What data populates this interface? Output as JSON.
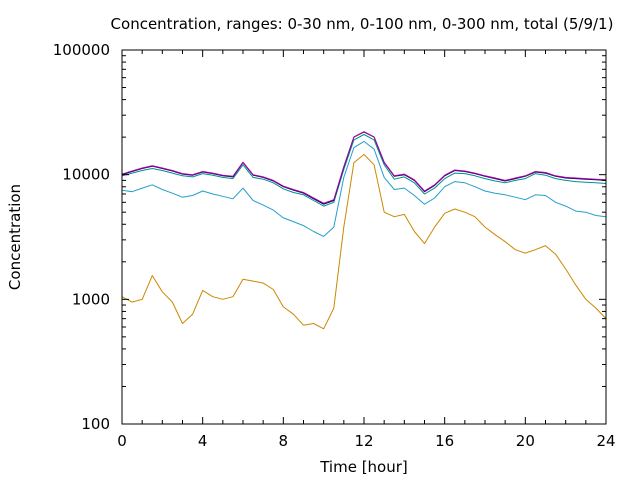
{
  "chart_data": {
    "type": "line",
    "title": "Concentration, ranges: 0-30 nm, 0-100 nm, 0-300 nm, total (5/9/1)",
    "xlabel": "Time [hour]",
    "ylabel": "Concentration",
    "xlim": [
      0,
      24
    ],
    "ylim": [
      100,
      100000
    ],
    "yscale": "log",
    "grid": false,
    "legend": "none",
    "x_ticks": [
      "0",
      "4",
      "8",
      "12",
      "16",
      "20",
      "24"
    ],
    "y_ticks": [
      "100",
      "1000",
      "10000",
      "100000"
    ],
    "x": [
      0,
      0.5,
      1,
      1.5,
      2,
      2.5,
      3,
      3.5,
      4,
      4.5,
      5,
      5.5,
      6,
      6.5,
      7,
      7.5,
      8,
      8.5,
      9,
      9.5,
      10,
      10.5,
      11,
      11.5,
      12,
      12.5,
      13,
      13.5,
      14,
      14.5,
      15,
      15.5,
      16,
      16.5,
      17,
      17.5,
      18,
      18.5,
      19,
      19.5,
      20,
      20.5,
      21,
      21.5,
      22,
      22.5,
      23,
      23.5,
      24
    ],
    "series": [
      {
        "color": "#cc8800",
        "values": [
          1050,
          950,
          1000,
          1550,
          1150,
          950,
          640,
          760,
          1180,
          1050,
          1000,
          1050,
          1450,
          1400,
          1350,
          1200,
          870,
          760,
          620,
          640,
          580,
          850,
          3800,
          12500,
          14500,
          12000,
          5000,
          4600,
          4800,
          3500,
          2800,
          3800,
          4900,
          5300,
          5000,
          4600,
          3800,
          3300,
          2900,
          2500,
          2350,
          2500,
          2700,
          2300,
          1750,
          1300,
          1000,
          850,
          700
        ]
      },
      {
        "color": "#22a0cc",
        "values": [
          7500,
          7300,
          7800,
          8300,
          7600,
          7100,
          6600,
          6800,
          7400,
          7000,
          6700,
          6400,
          7800,
          6200,
          5700,
          5200,
          4500,
          4200,
          3900,
          3500,
          3200,
          3800,
          9500,
          16500,
          18500,
          16000,
          9500,
          7600,
          7800,
          6800,
          5800,
          6500,
          8000,
          8800,
          8600,
          8000,
          7400,
          7100,
          6900,
          6600,
          6300,
          6900,
          6800,
          6000,
          5600,
          5100,
          5000,
          4700,
          4600
        ]
      },
      {
        "color": "#009088",
        "values": [
          9800,
          10300,
          10800,
          11200,
          10800,
          10300,
          9800,
          9600,
          10200,
          9900,
          9500,
          9300,
          12000,
          9500,
          9200,
          8600,
          7700,
          7200,
          6900,
          6200,
          5600,
          6000,
          11000,
          19000,
          21000,
          19000,
          12000,
          9200,
          9600,
          8600,
          7000,
          7800,
          9300,
          10300,
          10200,
          9800,
          9300,
          8900,
          8600,
          9000,
          9300,
          10200,
          9900,
          9300,
          9000,
          8800,
          8700,
          8600,
          8500
        ]
      },
      {
        "color": "#000060",
        "values": [
          10000,
          10600,
          11200,
          11700,
          11200,
          10700,
          10100,
          9900,
          10500,
          10200,
          9800,
          9600,
          12500,
          9900,
          9500,
          8900,
          8000,
          7500,
          7100,
          6400,
          5800,
          6200,
          11500,
          20000,
          22000,
          20000,
          12500,
          9700,
          10000,
          9000,
          7300,
          8200,
          9800,
          10800,
          10600,
          10200,
          9700,
          9300,
          8900,
          9300,
          9700,
          10500,
          10300,
          9700,
          9400,
          9300,
          9200,
          9100,
          9000
        ]
      },
      {
        "color": "#aa00aa",
        "values": [
          10100,
          10700,
          11300,
          11800,
          11300,
          10800,
          10200,
          10000,
          10600,
          10300,
          9900,
          9700,
          12600,
          10000,
          9600,
          9000,
          8100,
          7600,
          7200,
          6500,
          5900,
          6300,
          11600,
          20100,
          22100,
          20100,
          12600,
          9800,
          10100,
          9100,
          7400,
          8300,
          9900,
          10900,
          10700,
          10300,
          9800,
          9400,
          9000,
          9400,
          9800,
          10600,
          10400,
          9800,
          9500,
          9400,
          9300,
          9200,
          9100
        ]
      }
    ]
  }
}
